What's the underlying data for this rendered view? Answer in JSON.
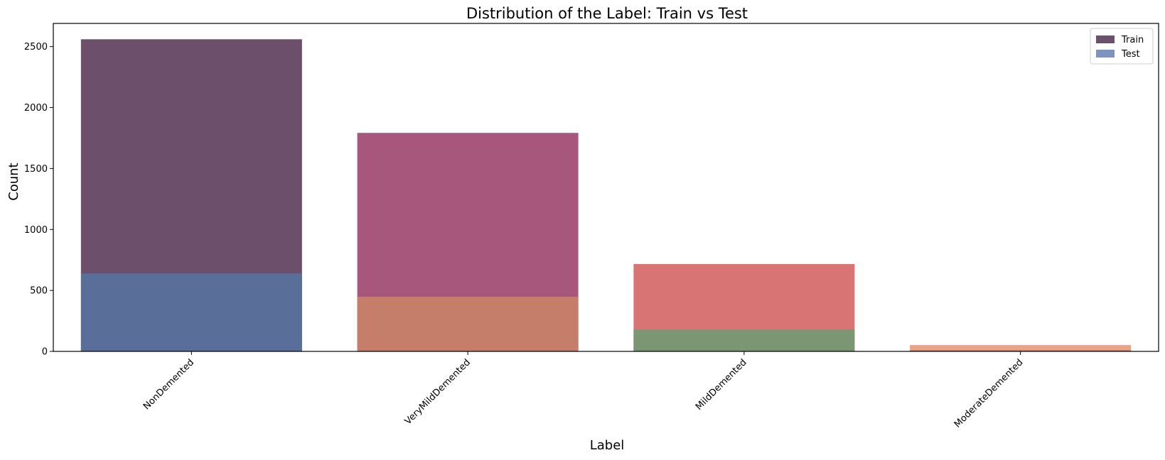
{
  "chart_data": {
    "type": "bar",
    "title": "Distribution of the Label: Train vs Test",
    "xlabel": "Label",
    "ylabel": "Count",
    "categories": [
      "NonDemented",
      "VeryMildDemented",
      "MildDemented",
      "ModerateDemented"
    ],
    "ylim": [
      0,
      2690
    ],
    "yticks": [
      0,
      500,
      1000,
      1500,
      2000,
      2500
    ],
    "series": [
      {
        "name": "Train",
        "values": [
          2560,
          1792,
          717,
          52
        ],
        "colors": [
          "#6b4f6b",
          "#a6577b",
          "#d97474",
          "#e8a487"
        ]
      },
      {
        "name": "Test",
        "values": [
          640,
          448,
          179,
          12
        ],
        "colors": [
          "#5a6e9a",
          "#c47e69",
          "#7a9673",
          "#cf8a72"
        ]
      }
    ],
    "legend": {
      "placement": "top-right",
      "entries": [
        {
          "name": "Train",
          "color": "#6b4f6b"
        },
        {
          "name": "Test",
          "color": "#7e93bf"
        }
      ]
    },
    "grid": false,
    "xtick_rotation": 45
  }
}
